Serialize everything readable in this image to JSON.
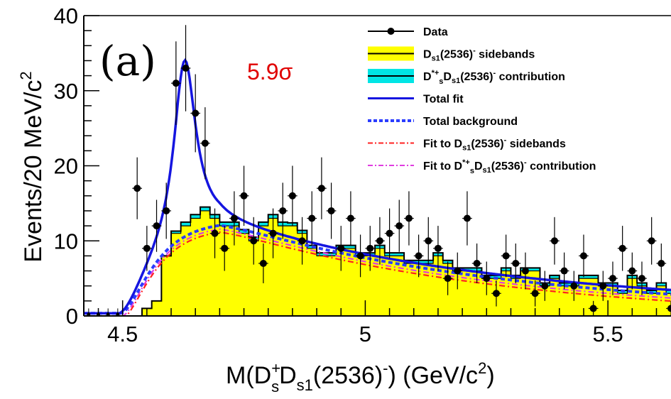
{
  "chart_data": {
    "type": "histogram",
    "panel_label": "(a)",
    "significance": "5.9σ",
    "significance_color": "#e00000",
    "xlim": [
      4.42,
      5.63
    ],
    "ylim": [
      0,
      40
    ],
    "x_ticks": [
      4.5,
      5,
      5.5
    ],
    "x_tick_labels": [
      "4.5",
      "5",
      "5.5"
    ],
    "y_ticks": [
      0,
      10,
      20,
      30,
      40
    ],
    "y_tick_labels": [
      "0",
      "10",
      "20",
      "30",
      "40"
    ],
    "ylabel": "Events/20 MeV/c",
    "ylabel_sup": "2",
    "xlabel": {
      "a": "M(D",
      "a_sup": "+",
      "a_sub": "s",
      "b": "D",
      "b_sub": "s1",
      "c": "(2536)",
      "c_sup": "-",
      "d": ") (GeV/c",
      "d_sup": "2",
      "e": ")"
    },
    "bin_width": 0.02,
    "colors": {
      "data": "#000000",
      "sideband_fill": "#ffff00",
      "contribution_fill": "#00e5e5",
      "total_fit": "#1515e0",
      "total_background": "#2a3cff",
      "fit_sideband": "#ff2020",
      "fit_contribution": "#e03ce0"
    },
    "legend": [
      {
        "key": "data",
        "style": "marker",
        "text": "Data"
      },
      {
        "key": "sideband",
        "style": "fill-yellow",
        "pre": "D",
        "sub": "s1",
        "post": "(2536)",
        "sup": "-",
        "tail": " sidebands"
      },
      {
        "key": "contribution",
        "style": "fill-cyan",
        "pre": "D",
        "sup1": "*+",
        "sub1": "s",
        "mid": "D",
        "sub": "s1",
        "post": "(2536)",
        "sup": "-",
        "tail": " contribution"
      },
      {
        "key": "total-fit",
        "style": "solid",
        "text": "Total fit"
      },
      {
        "key": "total-bkg",
        "style": "dashed",
        "text": "Total background"
      },
      {
        "key": "fit-sideband",
        "style": "dashdot-red",
        "pre": "Fit to D",
        "sub": "s1",
        "post": "(2536)",
        "sup": "-",
        "tail": " sidebands"
      },
      {
        "key": "fit-contribution",
        "style": "dashdot-magenta",
        "pre": "Fit to D",
        "sup1": "*+",
        "sub1": "s",
        "mid": "D",
        "sub": "s1",
        "post": "(2536)",
        "sup": "-",
        "tail": " contribution"
      }
    ],
    "data_points": {
      "x": [
        4.53,
        4.55,
        4.57,
        4.59,
        4.61,
        4.63,
        4.65,
        4.67,
        4.69,
        4.71,
        4.73,
        4.75,
        4.77,
        4.79,
        4.81,
        4.83,
        4.85,
        4.87,
        4.89,
        4.91,
        4.93,
        4.95,
        4.97,
        4.99,
        5.01,
        5.03,
        5.05,
        5.07,
        5.09,
        5.11,
        5.13,
        5.15,
        5.17,
        5.19,
        5.21,
        5.23,
        5.25,
        5.27,
        5.29,
        5.31,
        5.33,
        5.35,
        5.37,
        5.39,
        5.41,
        5.43,
        5.45,
        5.47,
        5.49,
        5.51,
        5.53,
        5.55,
        5.57,
        5.59,
        5.61,
        5.63
      ],
      "y": [
        17,
        9,
        12,
        14,
        31,
        33,
        27,
        23,
        11,
        9,
        13,
        16,
        10,
        7,
        11,
        14,
        16,
        10,
        13,
        17,
        14,
        9,
        13,
        8,
        9,
        10,
        11,
        12,
        13,
        8,
        10,
        9,
        5,
        6,
        13,
        7,
        5,
        3,
        8,
        7,
        6,
        3,
        4,
        10,
        6,
        4,
        8,
        1,
        4,
        5,
        9,
        6,
        5,
        10,
        7,
        1
      ]
    },
    "sideband_hist": [
      0,
      0,
      0,
      0,
      0,
      0,
      1,
      2,
      8,
      11,
      12,
      13,
      14,
      13,
      12,
      12,
      11,
      10,
      12,
      13,
      12,
      12,
      11,
      9,
      8,
      8,
      9,
      9,
      8,
      8,
      9,
      8,
      8,
      7,
      7,
      7,
      8,
      7,
      6,
      6,
      6,
      5,
      5,
      6,
      5,
      6,
      6,
      4,
      5,
      4,
      4,
      5,
      5,
      4,
      4,
      3,
      5,
      4,
      3,
      4,
      3
    ],
    "contribution_hist": [
      0,
      0,
      0,
      0,
      0,
      0,
      0,
      0,
      0,
      0.3,
      0.5,
      0.5,
      0.5,
      0.5,
      0.5,
      0.5,
      0.5,
      0.5,
      0.5,
      0.5,
      0.5,
      0.4,
      0.4,
      0.4,
      0.4,
      0.4,
      0.4,
      0.4,
      0.4,
      0.4,
      0.4,
      0.4,
      0.4,
      0.4,
      0.4,
      0.4,
      0.4,
      0.4,
      0.4,
      0.4,
      0.4,
      0.4,
      0.4,
      0.4,
      0.4,
      0.4,
      0.4,
      0.4,
      0.4,
      0.4,
      0.4,
      0.4,
      0.4,
      0.4,
      0.4,
      0.4,
      0.4,
      0.4,
      0.4,
      0.4,
      0.4
    ]
  }
}
